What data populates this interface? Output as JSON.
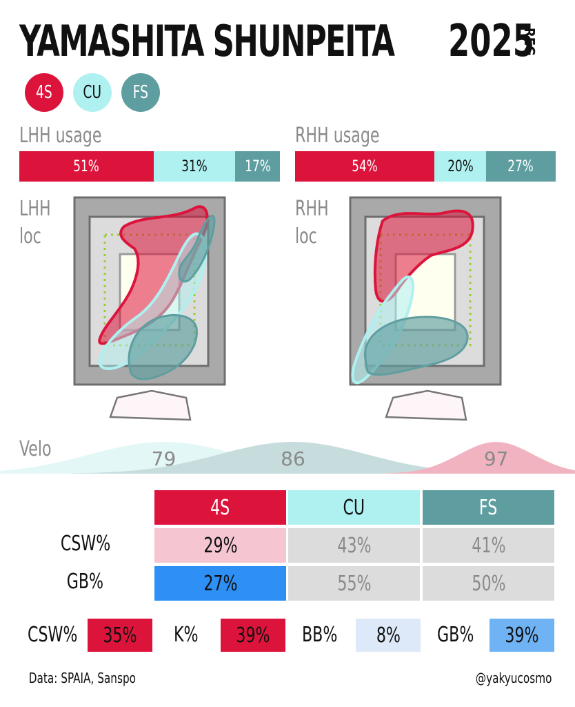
{
  "header": {
    "player": "YAMASHITA SHUNPEITA",
    "year": "2025",
    "season_tag": "REG"
  },
  "pitches": [
    {
      "code": "4S",
      "color": "#dc143c",
      "text_color": "#ffffff"
    },
    {
      "code": "CU",
      "color": "#aff0f0",
      "text_color": "#111111"
    },
    {
      "code": "FS",
      "color": "#5f9ea0",
      "text_color": "#ffffff"
    }
  ],
  "usage": {
    "lhh": {
      "label": "LHH usage",
      "segments": [
        {
          "pitch": "4S",
          "label": "51%",
          "value": 51
        },
        {
          "pitch": "CU",
          "label": "31%",
          "value": 31
        },
        {
          "pitch": "FS",
          "label": "17%",
          "value": 17
        }
      ]
    },
    "rhh": {
      "label": "RHH usage",
      "segments": [
        {
          "pitch": "4S",
          "label": "54%",
          "value": 54
        },
        {
          "pitch": "CU",
          "label": "20%",
          "value": 20
        },
        {
          "pitch": "FS",
          "label": "27%",
          "value": 27
        }
      ]
    }
  },
  "location": {
    "lhh": {
      "label_line1": "LHH",
      "label_line2": "loc"
    },
    "rhh": {
      "label_line1": "RHH",
      "label_line2": "loc"
    }
  },
  "velo": {
    "label": "Velo",
    "axis_range_kmh": [
      72,
      100
    ],
    "dists": [
      {
        "pitch": "CU",
        "label": "79",
        "center": 79,
        "spread": 4,
        "fill": "#e4f7f7"
      },
      {
        "pitch": "FS",
        "label": "86",
        "center": 86,
        "spread": 4,
        "fill": "#c7dddd"
      },
      {
        "pitch": "4S",
        "label": "97",
        "center": 97,
        "spread": 2,
        "fill": "#f2b3c0"
      }
    ]
  },
  "table": {
    "columns": [
      "4S",
      "CU",
      "FS"
    ],
    "rows": [
      {
        "label": "CSW%",
        "cells": [
          {
            "text": "29%",
            "bg": "#f5c6d1",
            "fg": "#111111"
          },
          {
            "text": "43%",
            "bg": "#dcdcdc",
            "fg": "#8a8a8a"
          },
          {
            "text": "41%",
            "bg": "#dcdcdc",
            "fg": "#8a8a8a"
          }
        ]
      },
      {
        "label": "GB%",
        "cells": [
          {
            "text": "27%",
            "bg": "#2e8ff5",
            "fg": "#111111"
          },
          {
            "text": "55%",
            "bg": "#dcdcdc",
            "fg": "#8a8a8a"
          },
          {
            "text": "50%",
            "bg": "#dcdcdc",
            "fg": "#8a8a8a"
          }
        ]
      }
    ]
  },
  "overall": [
    {
      "label": "CSW%",
      "value": "35%",
      "bg": "#dc143c",
      "fg": "#111111"
    },
    {
      "label": "K%",
      "value": "39%",
      "bg": "#dc143c",
      "fg": "#111111"
    },
    {
      "label": "BB%",
      "value": "8%",
      "bg": "#dde9f8",
      "fg": "#111111"
    },
    {
      "label": "GB%",
      "value": "39%",
      "bg": "#6fb3f5",
      "fg": "#111111"
    }
  ],
  "footer": {
    "source": "Data: SPAIA, Sanspo",
    "handle": "@yakyucosmo"
  },
  "chart_data": {
    "type": "bar",
    "title": "YAMASHITA SHUNPEITA 2025 REG",
    "categories": [
      "LHH usage",
      "RHH usage"
    ],
    "series": [
      {
        "name": "4S",
        "values": [
          51,
          54
        ]
      },
      {
        "name": "CU",
        "values": [
          31,
          20
        ]
      },
      {
        "name": "FS",
        "values": [
          17,
          27
        ]
      }
    ],
    "velo": {
      "CU": 79,
      "FS": 86,
      "4S": 97
    },
    "CSW%": {
      "4S": 29,
      "CU": 43,
      "FS": 41
    },
    "GB%": {
      "4S": 27,
      "CU": 55,
      "FS": 50
    },
    "overall": {
      "CSW%": 35,
      "K%": 39,
      "BB%": 8,
      "GB%": 39
    }
  }
}
